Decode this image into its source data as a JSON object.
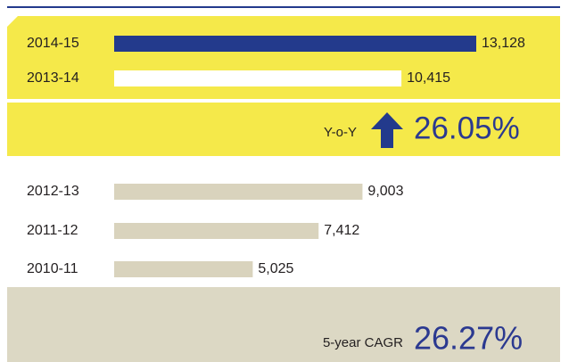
{
  "chart_data": {
    "type": "bar",
    "categories": [
      "2014-15",
      "2013-14",
      "2012-13",
      "2011-12",
      "2010-11"
    ],
    "values": [
      13128,
      10415,
      9003,
      7412,
      5025
    ],
    "value_labels": [
      "13,128",
      "10,415",
      "9,003",
      "7,412",
      "5,025"
    ],
    "colors": [
      "#233a8c",
      "#ffffff",
      "#d9d3bd",
      "#d9d3bd",
      "#d9d3bd"
    ],
    "yoy": {
      "label": "Y-o-Y",
      "value": "26.05%"
    },
    "cagr": {
      "label": "5-year CAGR",
      "value": "26.27%"
    }
  }
}
